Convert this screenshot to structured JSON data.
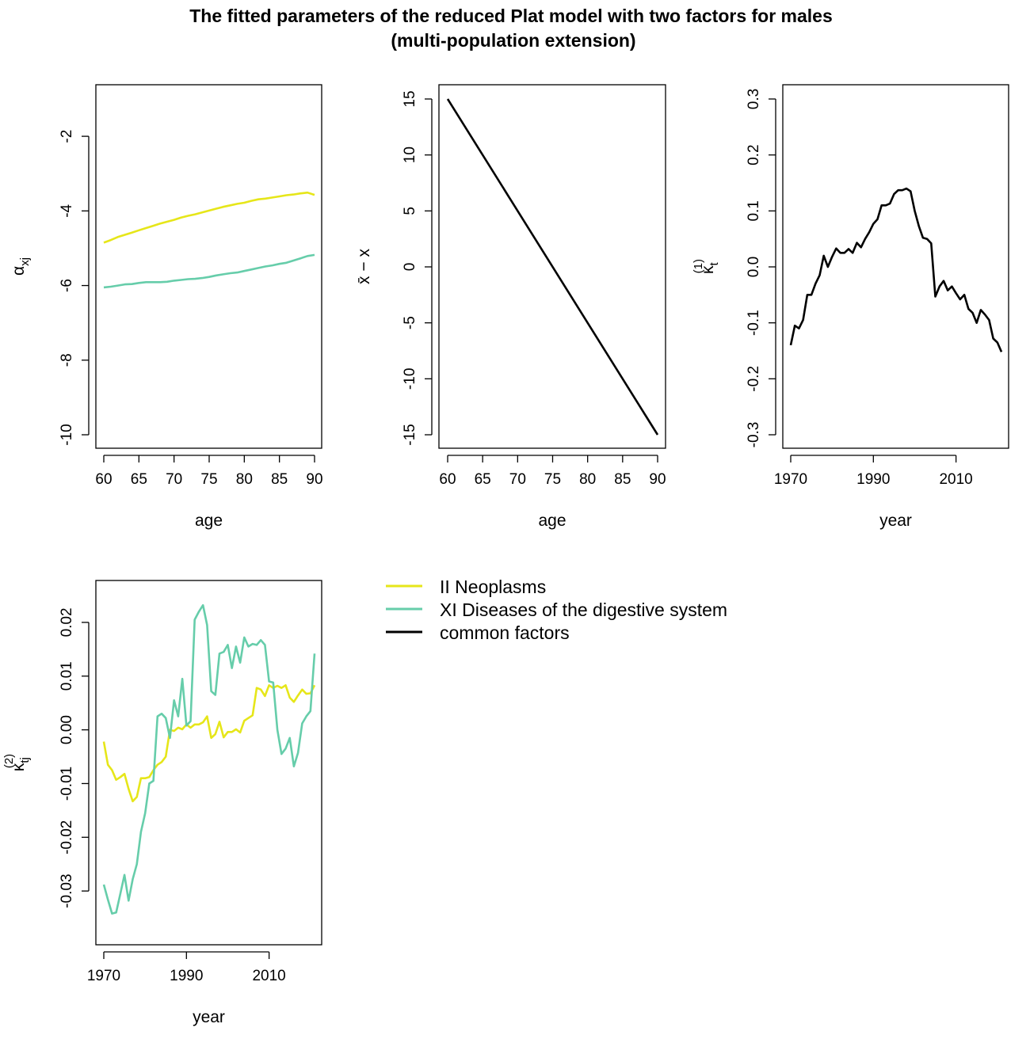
{
  "title": {
    "line1": "The fitted parameters of the reduced Plat model with two factors for males",
    "line2": "(multi-population extension)"
  },
  "colors": {
    "neoplasms": "#E6E619",
    "digestive": "#66CDAA",
    "common": "#000000"
  },
  "legend": {
    "items": [
      {
        "label": "II Neoplasms",
        "color": "#E6E619"
      },
      {
        "label": "XI Diseases of the digestive system",
        "color": "#66CDAA"
      },
      {
        "label": "common factors",
        "color": "#000000"
      }
    ]
  },
  "chart_data": [
    {
      "type": "line",
      "xlabel": "age",
      "ylabel": "α_xj",
      "xlim": [
        60,
        90
      ],
      "ylim": [
        -10,
        -1
      ],
      "xticks": [
        "60",
        "65",
        "70",
        "75",
        "80",
        "85",
        "90"
      ],
      "yticks": [
        "-10",
        "-8",
        "-6",
        "-4",
        "-2"
      ],
      "series": [
        {
          "name": "II Neoplasms",
          "color": "#E6E619",
          "x": [
            60,
            61,
            62,
            63,
            64,
            65,
            66,
            67,
            68,
            69,
            70,
            71,
            72,
            73,
            74,
            75,
            76,
            77,
            78,
            79,
            80,
            81,
            82,
            83,
            84,
            85,
            86,
            87,
            88,
            89,
            90
          ],
          "y": [
            -4.85,
            -4.78,
            -4.7,
            -4.64,
            -4.58,
            -4.52,
            -4.46,
            -4.4,
            -4.34,
            -4.29,
            -4.24,
            -4.18,
            -4.13,
            -4.09,
            -4.04,
            -3.99,
            -3.94,
            -3.89,
            -3.85,
            -3.81,
            -3.78,
            -3.73,
            -3.69,
            -3.67,
            -3.64,
            -3.61,
            -3.58,
            -3.56,
            -3.53,
            -3.51,
            -3.57
          ]
        },
        {
          "name": "XI Diseases of the digestive system",
          "color": "#66CDAA",
          "x": [
            60,
            61,
            62,
            63,
            64,
            65,
            66,
            67,
            68,
            69,
            70,
            71,
            72,
            73,
            74,
            75,
            76,
            77,
            78,
            79,
            80,
            81,
            82,
            83,
            84,
            85,
            86,
            87,
            88,
            89,
            90
          ],
          "y": [
            -6.05,
            -6.03,
            -6.0,
            -5.97,
            -5.96,
            -5.93,
            -5.91,
            -5.91,
            -5.91,
            -5.9,
            -5.87,
            -5.85,
            -5.83,
            -5.82,
            -5.8,
            -5.77,
            -5.73,
            -5.7,
            -5.67,
            -5.65,
            -5.61,
            -5.57,
            -5.53,
            -5.49,
            -5.46,
            -5.42,
            -5.39,
            -5.33,
            -5.27,
            -5.21,
            -5.18
          ]
        }
      ]
    },
    {
      "type": "line",
      "xlabel": "age",
      "ylabel": "x̄ − x",
      "xlim": [
        60,
        90
      ],
      "ylim": [
        -15,
        15
      ],
      "xticks": [
        "60",
        "65",
        "70",
        "75",
        "80",
        "85",
        "90"
      ],
      "yticks": [
        "-15",
        "-10",
        "-5",
        "0",
        "5",
        "10",
        "15"
      ],
      "series": [
        {
          "name": "common factors",
          "color": "#000000",
          "x": [
            60,
            90
          ],
          "y": [
            15,
            -15
          ]
        }
      ]
    },
    {
      "type": "line",
      "xlabel": "year",
      "ylabel": "κ_t^(1)",
      "xlim": [
        1970,
        2021
      ],
      "ylim": [
        -0.3,
        0.3
      ],
      "xticks": [
        "1970",
        "1990",
        "2010"
      ],
      "yticks": [
        "-0.3",
        "-0.2",
        "-0.1",
        "0.0",
        "0.1",
        "0.2",
        "0.3"
      ],
      "series": [
        {
          "name": "common factors",
          "color": "#000000",
          "x": [
            1970,
            1971,
            1972,
            1973,
            1974,
            1975,
            1976,
            1977,
            1978,
            1979,
            1980,
            1981,
            1982,
            1983,
            1984,
            1985,
            1986,
            1987,
            1988,
            1989,
            1990,
            1991,
            1992,
            1993,
            1994,
            1995,
            1996,
            1997,
            1998,
            1999,
            2000,
            2001,
            2002,
            2003,
            2004,
            2005,
            2006,
            2007,
            2008,
            2009,
            2010,
            2011,
            2012,
            2013,
            2014,
            2015,
            2016,
            2017,
            2018,
            2019,
            2020,
            2021
          ],
          "y": [
            -0.14,
            -0.105,
            -0.11,
            -0.095,
            -0.05,
            -0.05,
            -0.03,
            -0.015,
            0.02,
            0.0,
            0.018,
            0.033,
            0.025,
            0.025,
            0.032,
            0.025,
            0.043,
            0.035,
            0.05,
            0.062,
            0.077,
            0.085,
            0.11,
            0.11,
            0.113,
            0.13,
            0.137,
            0.137,
            0.14,
            0.135,
            0.1,
            0.073,
            0.052,
            0.05,
            0.042,
            -0.053,
            -0.035,
            -0.025,
            -0.042,
            -0.035,
            -0.047,
            -0.058,
            -0.05,
            -0.075,
            -0.082,
            -0.1,
            -0.077,
            -0.085,
            -0.095,
            -0.128,
            -0.135,
            -0.152
          ]
        }
      ]
    },
    {
      "type": "line",
      "xlabel": "year",
      "ylabel": "κ_tj^(2)",
      "xlim": [
        1970,
        2021
      ],
      "ylim": [
        -0.0375,
        0.025
      ],
      "xticks": [
        "1970",
        "1990",
        "2010"
      ],
      "yticks": [
        "-0.03",
        "-0.02",
        "-0.01",
        "0.00",
        "0.01",
        "0.02"
      ],
      "series": [
        {
          "name": "II Neoplasms",
          "color": "#E6E619",
          "x": [
            1970,
            1971,
            1972,
            1973,
            1974,
            1975,
            1976,
            1977,
            1978,
            1979,
            1980,
            1981,
            1982,
            1983,
            1984,
            1985,
            1986,
            1987,
            1988,
            1989,
            1990,
            1991,
            1992,
            1993,
            1994,
            1995,
            1996,
            1997,
            1998,
            1999,
            2000,
            2001,
            2002,
            2003,
            2004,
            2005,
            2006,
            2007,
            2008,
            2009,
            2010,
            2011,
            2012,
            2013,
            2014,
            2015,
            2016,
            2017,
            2018,
            2019,
            2020,
            2021
          ],
          "y": [
            -0.0022,
            -0.0065,
            -0.0075,
            -0.0093,
            -0.0088,
            -0.0082,
            -0.011,
            -0.0133,
            -0.0125,
            -0.009,
            -0.009,
            -0.0088,
            -0.0075,
            -0.0065,
            -0.006,
            -0.005,
            0.0,
            -0.0002,
            0.0004,
            0.0001,
            0.001,
            0.0004,
            0.001,
            0.001,
            0.0014,
            0.0025,
            -0.0015,
            -0.0008,
            0.0015,
            -0.0014,
            -0.0004,
            -0.0004,
            0.0001,
            -0.0005,
            0.0017,
            0.0022,
            0.0027,
            0.0078,
            0.0075,
            0.0063,
            0.0083,
            0.0078,
            0.0082,
            0.0078,
            0.0083,
            0.006,
            0.0052,
            0.0064,
            0.0075,
            0.0067,
            0.0068,
            0.0083
          ]
        },
        {
          "name": "XI Diseases of the digestive system",
          "color": "#66CDAA",
          "x": [
            1970,
            1971,
            1972,
            1973,
            1974,
            1975,
            1976,
            1977,
            1978,
            1979,
            1980,
            1981,
            1982,
            1983,
            1984,
            1985,
            1986,
            1987,
            1988,
            1989,
            1990,
            1991,
            1992,
            1993,
            1994,
            1995,
            1996,
            1997,
            1998,
            1999,
            2000,
            2001,
            2002,
            2003,
            2004,
            2005,
            2006,
            2007,
            2008,
            2009,
            2010,
            2011,
            2012,
            2013,
            2014,
            2015,
            2016,
            2017,
            2018,
            2019,
            2020,
            2021
          ],
          "y": [
            -0.0288,
            -0.0316,
            -0.0342,
            -0.034,
            -0.0305,
            -0.027,
            -0.0318,
            -0.0278,
            -0.025,
            -0.019,
            -0.0155,
            -0.01,
            -0.0095,
            0.0025,
            0.003,
            0.0022,
            -0.0015,
            0.0055,
            0.0025,
            0.0095,
            0.0008,
            0.0016,
            0.0205,
            0.022,
            0.0232,
            0.0195,
            0.0072,
            0.0065,
            0.0142,
            0.0145,
            0.0158,
            0.0115,
            0.0155,
            0.0125,
            0.0172,
            0.0155,
            0.016,
            0.0158,
            0.0167,
            0.0158,
            0.009,
            0.0088,
            0.0,
            -0.0045,
            -0.0035,
            -0.0015,
            -0.0068,
            -0.0043,
            0.0012,
            0.0025,
            0.0035,
            0.0142
          ]
        }
      ]
    }
  ]
}
